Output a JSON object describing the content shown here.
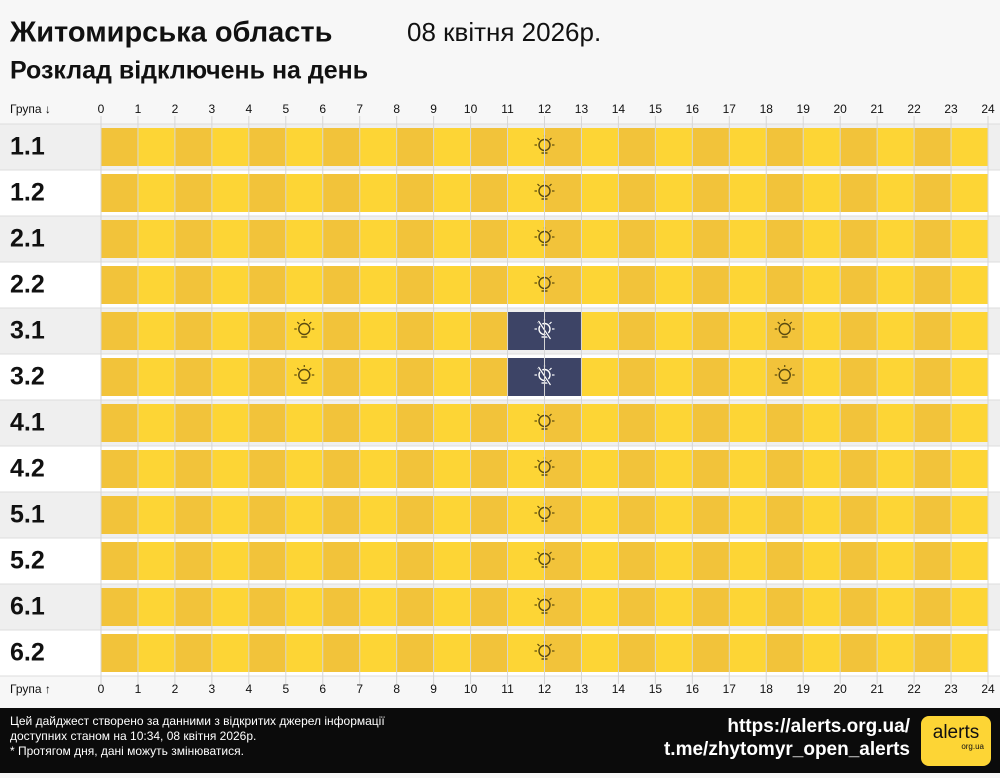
{
  "header": {
    "title": "Житомирська область",
    "date": "08 квітня 2026р.",
    "subtitle": "Розклад відключень на день"
  },
  "chart_data": {
    "type": "timeline",
    "y_label_top": "Група ↓",
    "y_label_bottom": "Група ↑",
    "xlim": [
      0,
      24
    ],
    "xticks": [
      0,
      1,
      2,
      3,
      4,
      5,
      6,
      7,
      8,
      9,
      10,
      11,
      12,
      13,
      14,
      15,
      16,
      17,
      18,
      19,
      20,
      21,
      22,
      23,
      24
    ],
    "groups": [
      {
        "name": "1.1",
        "outages": []
      },
      {
        "name": "1.2",
        "outages": []
      },
      {
        "name": "2.1",
        "outages": []
      },
      {
        "name": "2.2",
        "outages": []
      },
      {
        "name": "3.1",
        "outages": [
          [
            11,
            13
          ]
        ]
      },
      {
        "name": "3.2",
        "outages": [
          [
            11,
            13
          ]
        ]
      },
      {
        "name": "4.1",
        "outages": []
      },
      {
        "name": "4.2",
        "outages": []
      },
      {
        "name": "5.1",
        "outages": []
      },
      {
        "name": "5.2",
        "outages": []
      },
      {
        "name": "6.1",
        "outages": []
      },
      {
        "name": "6.2",
        "outages": []
      }
    ]
  },
  "footer": {
    "note": [
      "Цей дайджест створено за данними з відкритих джерел інформації",
      "доступних станом на 10:34, 08 квітня 2026р.",
      "* Протягом дня, дані можуть змінюватися."
    ],
    "links": [
      "https://alerts.org.ua/",
      "t.me/zhytomyr_open_alerts"
    ],
    "logo": {
      "text": "alerts",
      "sub": "org.ua"
    }
  }
}
